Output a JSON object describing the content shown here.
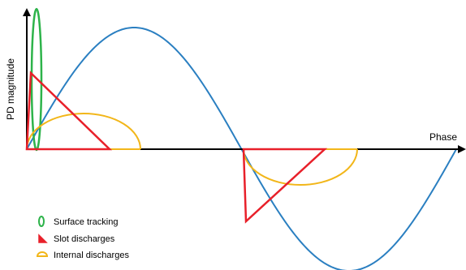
{
  "axes": {
    "y_label": "PD magnitude",
    "x_label": "Phase"
  },
  "legend": {
    "items": [
      {
        "label": "Surface tracking",
        "color": "#2db34a",
        "icon": "ellipse-icon"
      },
      {
        "label": "Slot discharges",
        "color": "#e8202a",
        "icon": "triangle-icon"
      },
      {
        "label": "Internal discharges",
        "color": "#f2b619",
        "icon": "half-ellipse-icon"
      }
    ]
  },
  "colors": {
    "sine": "#2a7fc1",
    "axis": "#000000"
  }
}
